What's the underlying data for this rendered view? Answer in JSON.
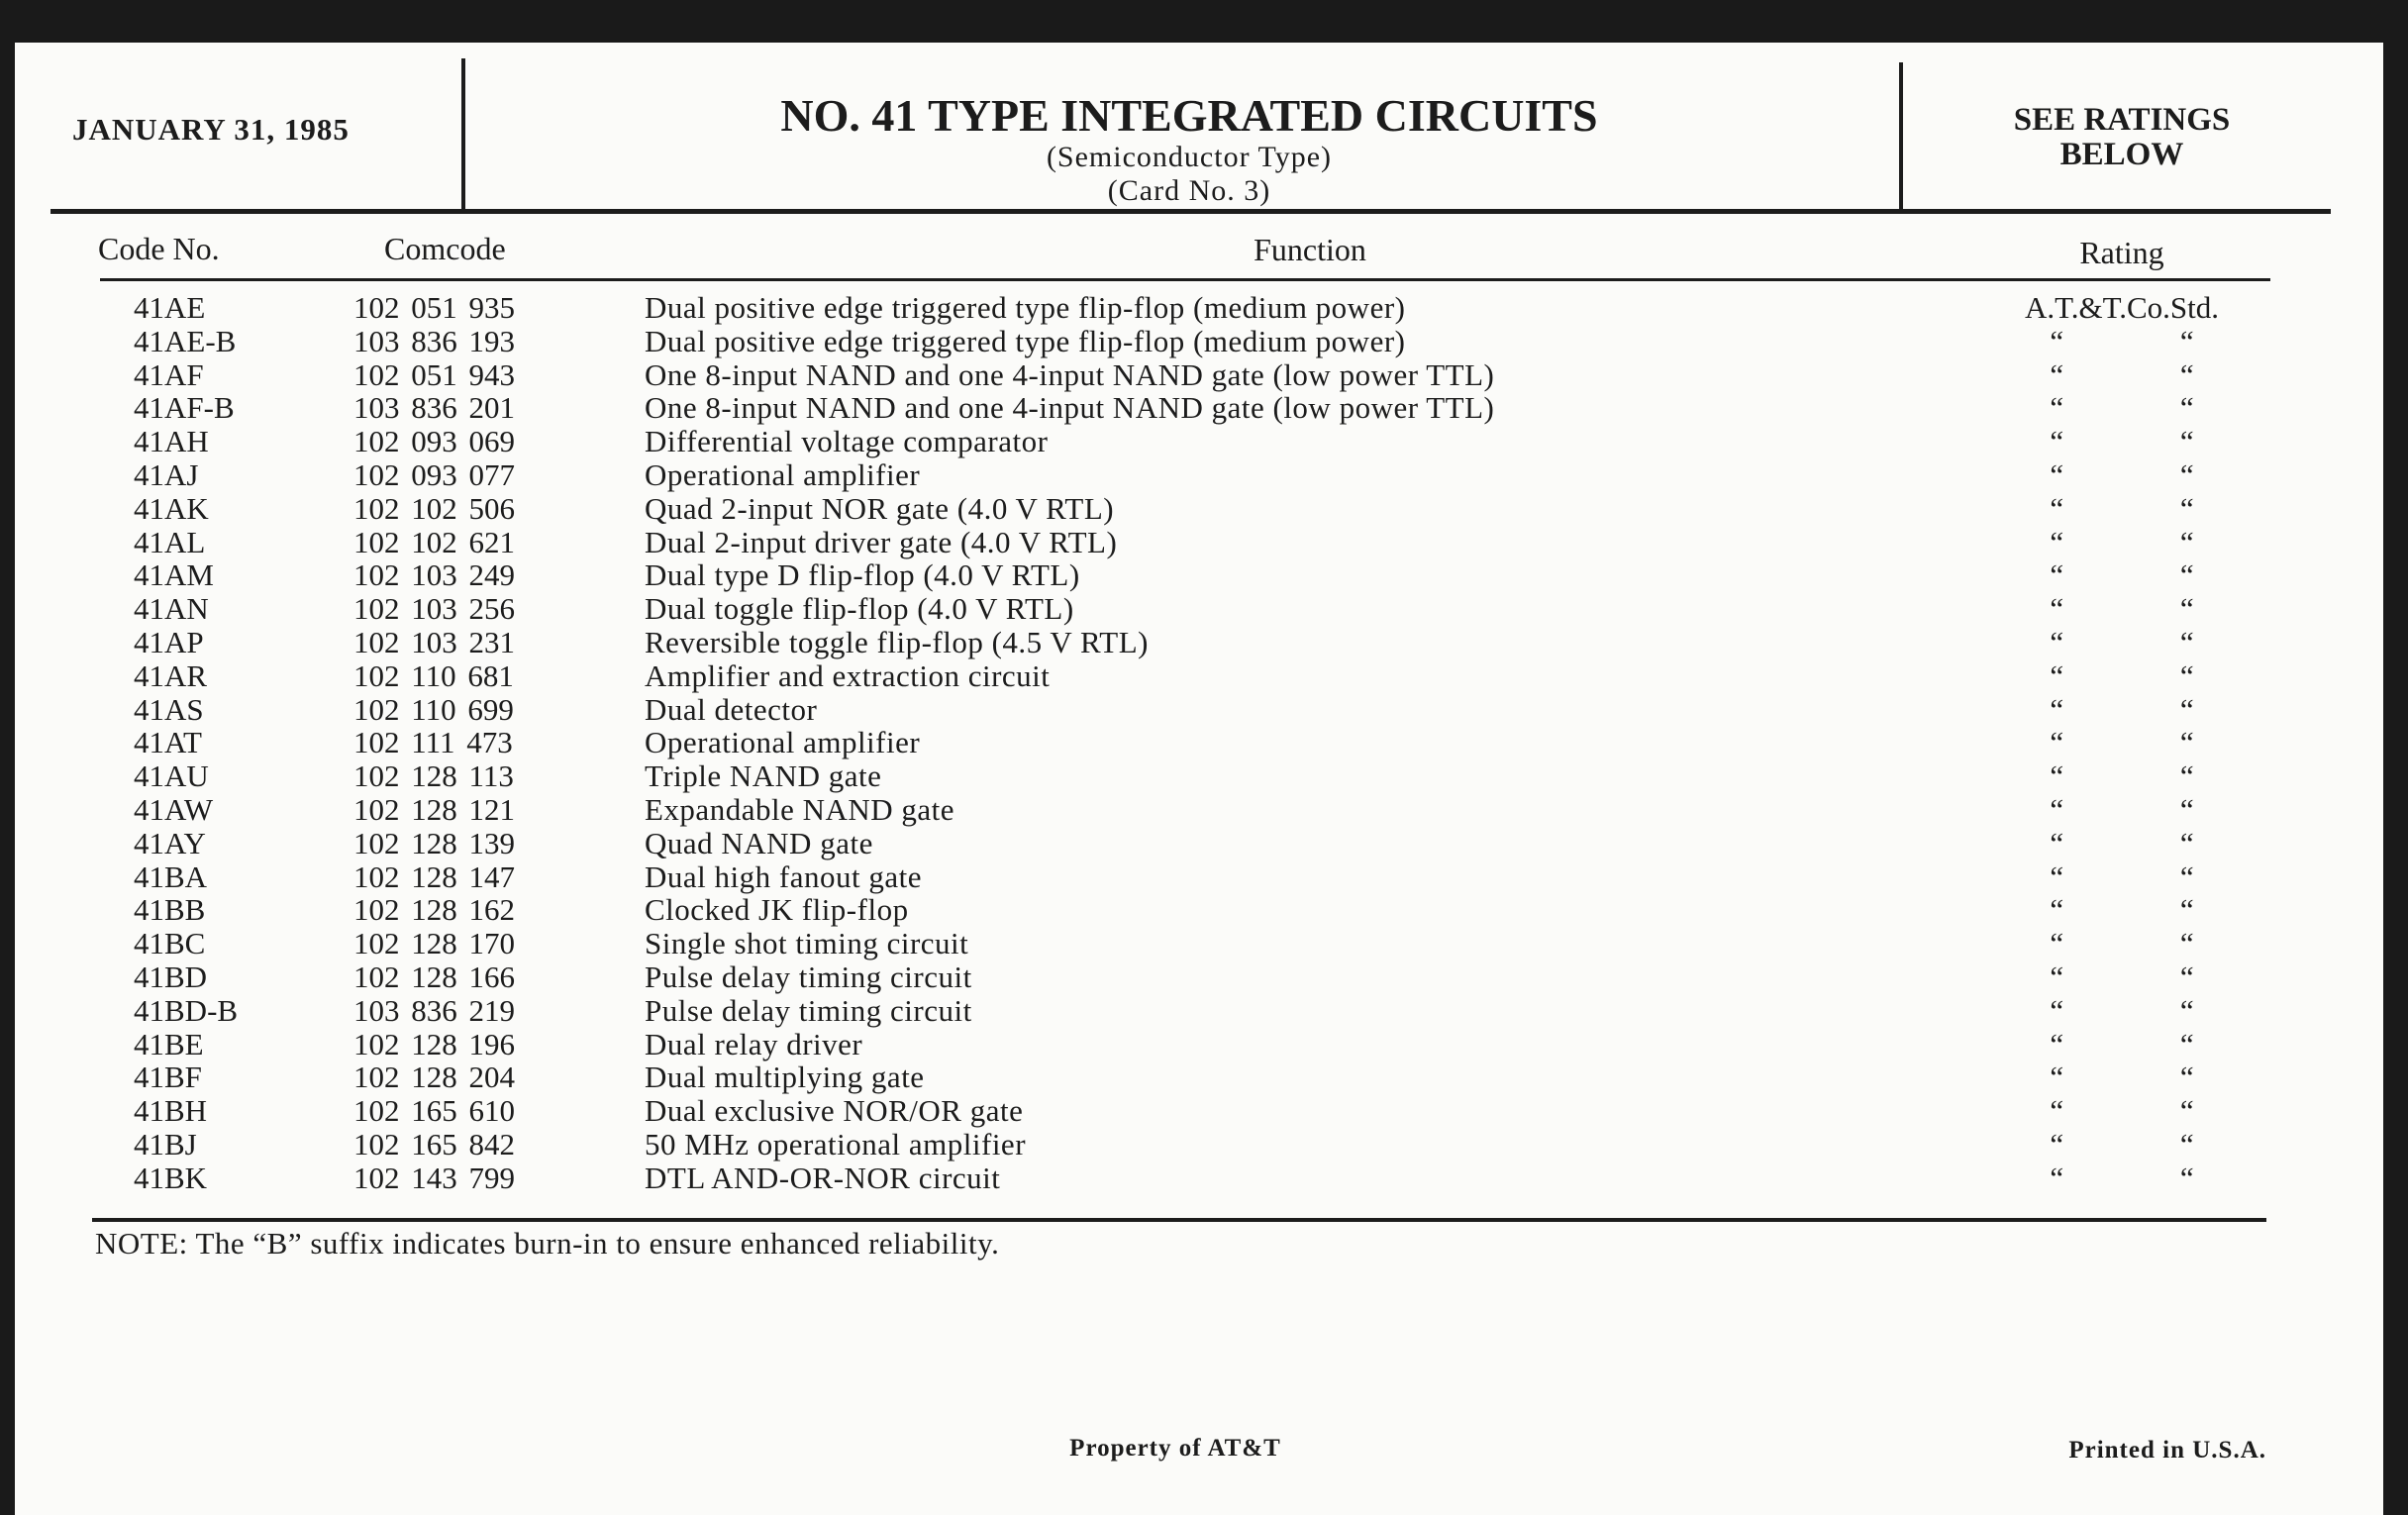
{
  "header": {
    "date": "JANUARY 31, 1985",
    "title": "NO. 41 TYPE INTEGRATED CIRCUITS",
    "subtitle": "(Semiconductor Type)",
    "card": "(Card No. 3)",
    "ratings_note": [
      "SEE RATINGS",
      "BELOW"
    ]
  },
  "table": {
    "columns": [
      "Code No.",
      "Comcode",
      "Function",
      "Rating"
    ],
    "rows": [
      [
        "41AE",
        "102 051 935",
        "Dual positive edge triggered type flip-flop (medium power)",
        "A.T.&T.Co.Std."
      ],
      [
        "41AE-B",
        "103 836 193",
        "Dual positive edge triggered type flip-flop (medium power)",
        "“ “"
      ],
      [
        "41AF",
        "102 051 943",
        "One 8-input NAND and one 4-input NAND gate (low power TTL)",
        "“ “"
      ],
      [
        "41AF-B",
        "103 836 201",
        "One 8-input NAND and one 4-input NAND gate (low power TTL)",
        "“ “"
      ],
      [
        "41AH",
        "102 093 069",
        "Differential voltage comparator",
        "“ “"
      ],
      [
        "41AJ",
        "102 093 077",
        "Operational amplifier",
        "“ “"
      ],
      [
        "41AK",
        "102 102 506",
        "Quad 2-input NOR gate (4.0 V RTL)",
        "“ “"
      ],
      [
        "41AL",
        "102 102 621",
        "Dual 2-input driver gate (4.0 V RTL)",
        "“ “"
      ],
      [
        "41AM",
        "102 103 249",
        "Dual type D flip-flop (4.0 V RTL)",
        "“ “"
      ],
      [
        "41AN",
        "102 103 256",
        "Dual toggle flip-flop (4.0 V RTL)",
        "“ “"
      ],
      [
        "41AP",
        "102 103 231",
        "Reversible toggle flip-flop (4.5 V RTL)",
        "“ “"
      ],
      [
        "41AR",
        "102 110 681",
        "Amplifier and extraction circuit",
        "“ “"
      ],
      [
        "41AS",
        "102 110 699",
        "Dual detector",
        "“ “"
      ],
      [
        "41AT",
        "102 111 473",
        "Operational amplifier",
        "“ “"
      ],
      [
        "41AU",
        "102 128 113",
        "Triple NAND gate",
        "“ “"
      ],
      [
        "41AW",
        "102 128 121",
        "Expandable NAND gate",
        "“ “"
      ],
      [
        "41AY",
        "102 128 139",
        "Quad NAND gate",
        "“ “"
      ],
      [
        "41BA",
        "102 128 147",
        "Dual high fanout gate",
        "“ “"
      ],
      [
        "41BB",
        "102 128 162",
        "Clocked JK flip-flop",
        "“ “"
      ],
      [
        "41BC",
        "102 128 170",
        "Single shot timing circuit",
        "“ “"
      ],
      [
        "41BD",
        "102 128 166",
        "Pulse delay timing circuit",
        "“ “"
      ],
      [
        "41BD-B",
        "103 836 219",
        "Pulse delay timing circuit",
        "“ “"
      ],
      [
        "41BE",
        "102 128 196",
        "Dual relay driver",
        "“ “"
      ],
      [
        "41BF",
        "102 128 204",
        "Dual multiplying gate",
        "“ “"
      ],
      [
        "41BH",
        "102 165 610",
        "Dual exclusive NOR/OR gate",
        "“ “"
      ],
      [
        "41BJ",
        "102 165 842",
        "50 MHz operational amplifier",
        "“ “"
      ],
      [
        "41BK",
        "102 143 799",
        "DTL AND-OR-NOR circuit",
        "“ “"
      ]
    ]
  },
  "note": "NOTE: The “B” suffix indicates burn-in to ensure enhanced reliability.",
  "footer": {
    "property": "Property of AT&T",
    "printed": "Printed in U.S.A."
  }
}
